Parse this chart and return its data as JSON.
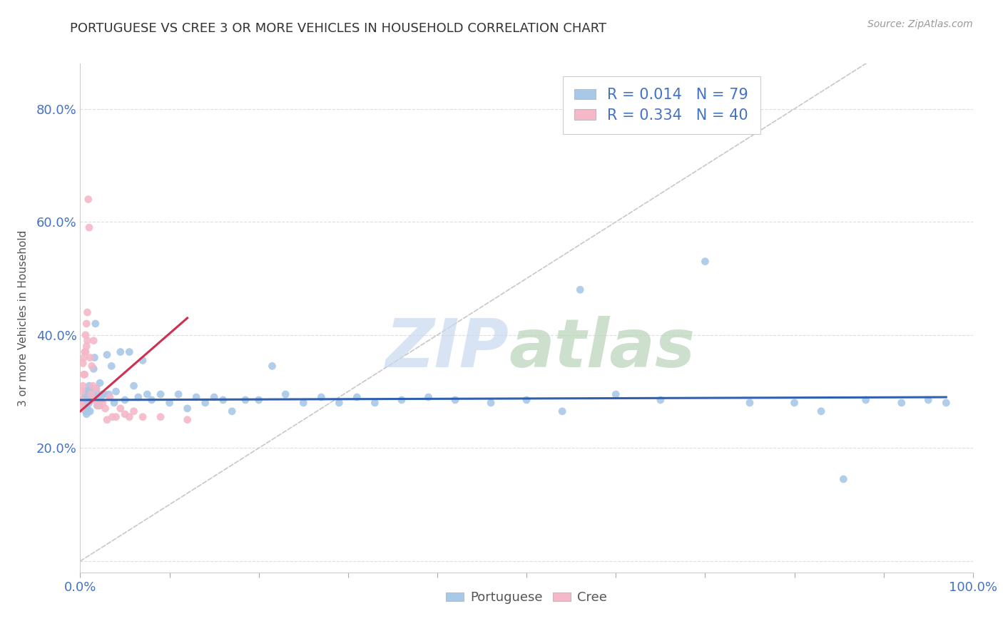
{
  "title": "PORTUGUESE VS CREE 3 OR MORE VEHICLES IN HOUSEHOLD CORRELATION CHART",
  "source": "Source: ZipAtlas.com",
  "ylabel": "3 or more Vehicles in Household",
  "xlim": [
    0.0,
    1.0
  ],
  "ylim": [
    -0.02,
    0.88
  ],
  "xticks": [
    0.0,
    0.1,
    0.2,
    0.3,
    0.4,
    0.5,
    0.6,
    0.7,
    0.8,
    0.9,
    1.0
  ],
  "xticklabels": [
    "0.0%",
    "",
    "",
    "",
    "",
    "",
    "",
    "",
    "",
    "",
    "100.0%"
  ],
  "yticks": [
    0.0,
    0.2,
    0.4,
    0.6,
    0.8
  ],
  "yticklabels": [
    "",
    "20.0%",
    "40.0%",
    "60.0%",
    "80.0%"
  ],
  "portuguese_color": "#a8c8e8",
  "cree_color": "#f4b8c8",
  "trendline_portuguese_color": "#3060b0",
  "trendline_cree_color": "#d03050",
  "diagonal_color": "#c8c8c8",
  "watermark_zip_color": "#c8d8f0",
  "watermark_atlas_color": "#b8d4b8",
  "portuguese_x": [
    0.003,
    0.004,
    0.005,
    0.005,
    0.006,
    0.006,
    0.007,
    0.007,
    0.008,
    0.008,
    0.009,
    0.009,
    0.01,
    0.01,
    0.011,
    0.011,
    0.012,
    0.013,
    0.014,
    0.015,
    0.015,
    0.016,
    0.017,
    0.018,
    0.019,
    0.02,
    0.022,
    0.023,
    0.025,
    0.027,
    0.03,
    0.032,
    0.035,
    0.038,
    0.04,
    0.045,
    0.05,
    0.055,
    0.06,
    0.065,
    0.07,
    0.075,
    0.08,
    0.09,
    0.1,
    0.11,
    0.12,
    0.13,
    0.14,
    0.15,
    0.16,
    0.17,
    0.185,
    0.2,
    0.215,
    0.23,
    0.25,
    0.27,
    0.29,
    0.31,
    0.33,
    0.36,
    0.39,
    0.42,
    0.46,
    0.5,
    0.54,
    0.56,
    0.6,
    0.65,
    0.7,
    0.75,
    0.8,
    0.83,
    0.855,
    0.88,
    0.92,
    0.95,
    0.97
  ],
  "portuguese_y": [
    0.285,
    0.275,
    0.29,
    0.27,
    0.295,
    0.265,
    0.3,
    0.26,
    0.295,
    0.27,
    0.3,
    0.265,
    0.31,
    0.28,
    0.29,
    0.265,
    0.305,
    0.285,
    0.295,
    0.34,
    0.3,
    0.36,
    0.42,
    0.305,
    0.275,
    0.295,
    0.315,
    0.285,
    0.295,
    0.295,
    0.365,
    0.295,
    0.345,
    0.28,
    0.3,
    0.37,
    0.285,
    0.37,
    0.31,
    0.29,
    0.355,
    0.295,
    0.285,
    0.295,
    0.28,
    0.295,
    0.27,
    0.29,
    0.28,
    0.29,
    0.285,
    0.265,
    0.285,
    0.285,
    0.345,
    0.295,
    0.28,
    0.29,
    0.28,
    0.29,
    0.28,
    0.285,
    0.29,
    0.285,
    0.28,
    0.285,
    0.265,
    0.48,
    0.295,
    0.285,
    0.53,
    0.28,
    0.28,
    0.265,
    0.145,
    0.285,
    0.28,
    0.285,
    0.28
  ],
  "cree_x": [
    0.001,
    0.001,
    0.002,
    0.002,
    0.003,
    0.003,
    0.004,
    0.004,
    0.005,
    0.005,
    0.006,
    0.006,
    0.007,
    0.007,
    0.008,
    0.008,
    0.009,
    0.01,
    0.011,
    0.012,
    0.013,
    0.014,
    0.015,
    0.016,
    0.018,
    0.02,
    0.022,
    0.025,
    0.028,
    0.03,
    0.033,
    0.036,
    0.04,
    0.045,
    0.05,
    0.055,
    0.06,
    0.07,
    0.09,
    0.12
  ],
  "cree_y": [
    0.285,
    0.27,
    0.3,
    0.275,
    0.31,
    0.35,
    0.33,
    0.36,
    0.37,
    0.33,
    0.4,
    0.37,
    0.42,
    0.38,
    0.44,
    0.39,
    0.64,
    0.59,
    0.36,
    0.295,
    0.345,
    0.31,
    0.39,
    0.285,
    0.305,
    0.275,
    0.275,
    0.28,
    0.27,
    0.25,
    0.29,
    0.255,
    0.255,
    0.27,
    0.26,
    0.255,
    0.265,
    0.255,
    0.255,
    0.25
  ],
  "port_trend_x": [
    0.0,
    0.97
  ],
  "port_trend_y": [
    0.285,
    0.29
  ],
  "cree_trend_x": [
    0.0,
    0.12
  ],
  "cree_trend_y": [
    0.265,
    0.43
  ]
}
